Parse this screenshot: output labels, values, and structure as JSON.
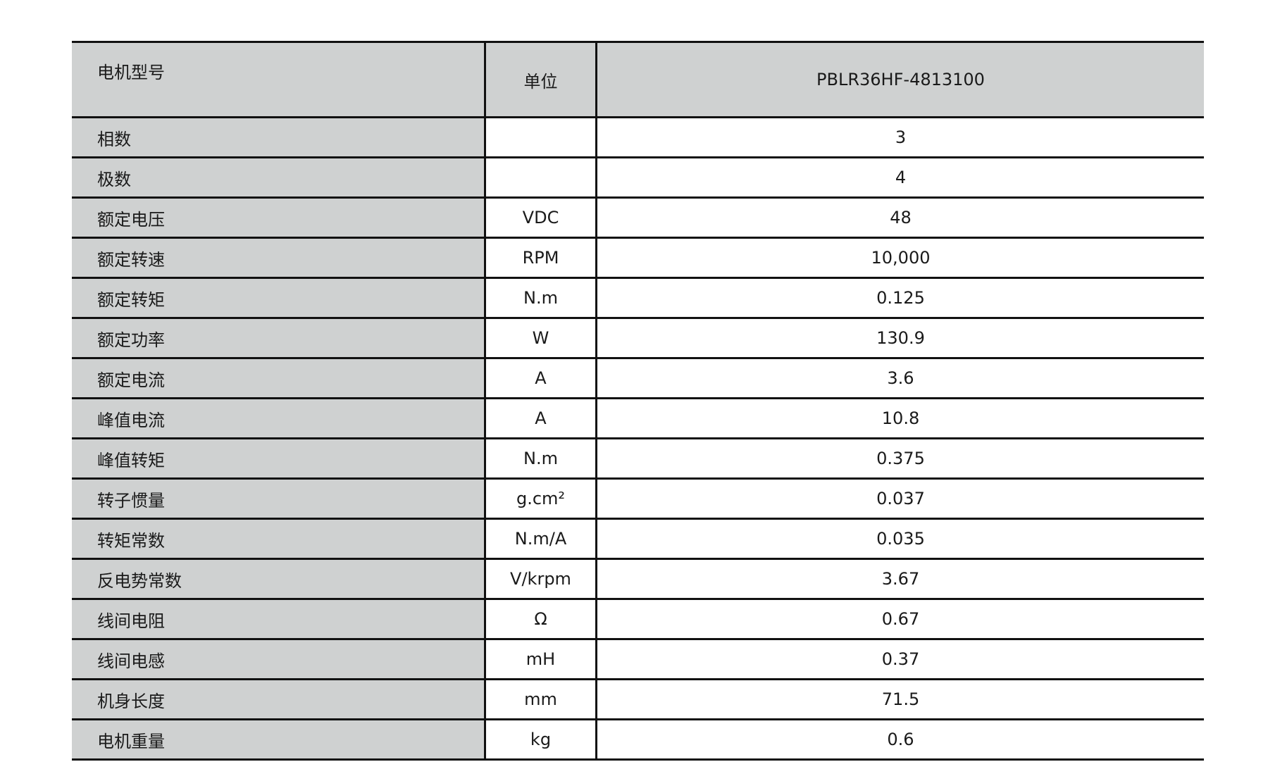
{
  "header": {
    "name": "电机型号",
    "unit": "单位",
    "value": "PBLR36HF-4813100"
  },
  "rows": [
    {
      "name": "相数",
      "unit": "",
      "value": "3"
    },
    {
      "name": "极数",
      "unit": "",
      "value": "4"
    },
    {
      "name": "额定电压",
      "unit": "VDC",
      "value": "48"
    },
    {
      "name": "额定转速",
      "unit": "RPM",
      "value": "10,000"
    },
    {
      "name": "额定转矩",
      "unit": "N.m",
      "value": "0.125"
    },
    {
      "name": "额定功率",
      "unit": "W",
      "value": "130.9"
    },
    {
      "name": "额定电流",
      "unit": "A",
      "value": "3.6"
    },
    {
      "name": "峰值电流",
      "unit": "A",
      "value": "10.8"
    },
    {
      "name": "峰值转矩",
      "unit": "N.m",
      "value": "0.375"
    },
    {
      "name": "转子惯量",
      "unit": "g.cm²",
      "value": "0.037"
    },
    {
      "name": "转矩常数",
      "unit": "N.m/A",
      "value": "0.035"
    },
    {
      "name": "反电势常数",
      "unit": "V/krpm",
      "value": "3.67"
    },
    {
      "name": "线间电阻",
      "unit": "Ω",
      "value": "0.67"
    },
    {
      "name": "线间电感",
      "unit": "mH",
      "value": "0.37"
    },
    {
      "name": "机身长度",
      "unit": "mm",
      "value": "71.5"
    },
    {
      "name": "电机重量",
      "unit": "kg",
      "value": "0.6"
    }
  ],
  "colors": {
    "label_background": "#cfd1d1",
    "rule": "#111111"
  }
}
